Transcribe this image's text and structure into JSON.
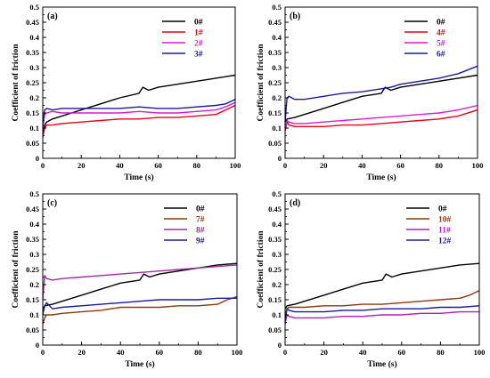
{
  "chart_data": [
    {
      "type": "line",
      "panel_label": "(a)",
      "xlabel": "Time (s)",
      "ylabel": "Coefficient of friction",
      "xlim": [
        0,
        100
      ],
      "ylim": [
        0,
        0.5
      ],
      "xticks": [
        0,
        20,
        40,
        60,
        80,
        100
      ],
      "yticks": [
        0,
        0.05,
        0.1,
        0.15,
        0.2,
        0.25,
        0.3,
        0.35,
        0.4,
        0.45,
        0.5
      ],
      "ytick_labels": [
        "0",
        "0.05",
        "0.1",
        "0.15",
        "0.2",
        "0.25",
        "0.3",
        "0.35",
        "0.4",
        "0.45",
        "0.5"
      ],
      "legend_position": "top-right",
      "series": [
        {
          "name": "0#",
          "color": "#000000",
          "x": [
            0,
            1,
            2,
            5,
            10,
            20,
            30,
            40,
            50,
            52,
            55,
            60,
            70,
            80,
            90,
            100
          ],
          "y": [
            0.08,
            0.11,
            0.12,
            0.13,
            0.14,
            0.16,
            0.18,
            0.2,
            0.215,
            0.235,
            0.225,
            0.235,
            0.245,
            0.255,
            0.265,
            0.275
          ]
        },
        {
          "name": "1#",
          "color": "#e8001c",
          "x": [
            0,
            1,
            2,
            5,
            10,
            20,
            30,
            40,
            50,
            60,
            70,
            80,
            90,
            95,
            100
          ],
          "y": [
            0.07,
            0.1,
            0.11,
            0.11,
            0.115,
            0.12,
            0.125,
            0.13,
            0.13,
            0.135,
            0.135,
            0.14,
            0.145,
            0.16,
            0.175
          ]
        },
        {
          "name": "2#",
          "color": "#d11fd1",
          "x": [
            0,
            1,
            2,
            5,
            10,
            20,
            30,
            40,
            50,
            60,
            70,
            80,
            90,
            95,
            100
          ],
          "y": [
            0.1,
            0.145,
            0.15,
            0.155,
            0.15,
            0.15,
            0.15,
            0.15,
            0.155,
            0.15,
            0.15,
            0.155,
            0.16,
            0.17,
            0.185
          ]
        },
        {
          "name": "3#",
          "color": "#1a1a9c",
          "x": [
            0,
            1,
            2,
            5,
            10,
            20,
            30,
            40,
            50,
            60,
            70,
            80,
            90,
            95,
            100
          ],
          "y": [
            0.12,
            0.16,
            0.165,
            0.16,
            0.165,
            0.165,
            0.165,
            0.165,
            0.17,
            0.165,
            0.165,
            0.17,
            0.175,
            0.18,
            0.195
          ]
        }
      ]
    },
    {
      "type": "line",
      "panel_label": "(b)",
      "xlabel": "Time (s)",
      "ylabel": "Coefficient of friction",
      "xlim": [
        0,
        100
      ],
      "ylim": [
        0,
        0.5
      ],
      "xticks": [
        0,
        20,
        40,
        60,
        80,
        100
      ],
      "yticks": [
        0,
        0.05,
        0.1,
        0.15,
        0.2,
        0.25,
        0.3,
        0.35,
        0.4,
        0.45,
        0.5
      ],
      "ytick_labels": [
        "0",
        "0.05",
        "0.1",
        "0.15",
        "0.2",
        "0.25",
        "0.3",
        "0.35",
        "0.4",
        "0.45",
        "0.5"
      ],
      "legend_position": "top-right",
      "series": [
        {
          "name": "0#",
          "color": "#000000",
          "x": [
            0,
            1,
            5,
            10,
            20,
            30,
            40,
            50,
            52,
            55,
            60,
            70,
            80,
            90,
            100
          ],
          "y": [
            0.12,
            0.13,
            0.135,
            0.145,
            0.165,
            0.185,
            0.205,
            0.215,
            0.235,
            0.225,
            0.235,
            0.245,
            0.255,
            0.265,
            0.275
          ]
        },
        {
          "name": "4#",
          "color": "#e8001c",
          "x": [
            0,
            1,
            2,
            5,
            10,
            20,
            30,
            40,
            50,
            60,
            70,
            80,
            90,
            100
          ],
          "y": [
            0.09,
            0.12,
            0.11,
            0.105,
            0.105,
            0.105,
            0.11,
            0.11,
            0.115,
            0.12,
            0.125,
            0.13,
            0.14,
            0.16
          ]
        },
        {
          "name": "5#",
          "color": "#d11fd1",
          "x": [
            0,
            1,
            2,
            5,
            10,
            20,
            30,
            40,
            50,
            60,
            70,
            80,
            90,
            100
          ],
          "y": [
            0.1,
            0.125,
            0.12,
            0.115,
            0.115,
            0.12,
            0.125,
            0.13,
            0.135,
            0.14,
            0.145,
            0.15,
            0.16,
            0.175
          ]
        },
        {
          "name": "6#",
          "color": "#1a1a9c",
          "x": [
            0,
            1,
            2,
            5,
            10,
            20,
            30,
            40,
            50,
            55,
            60,
            70,
            80,
            90,
            100
          ],
          "y": [
            0.12,
            0.2,
            0.205,
            0.195,
            0.195,
            0.205,
            0.215,
            0.22,
            0.23,
            0.235,
            0.245,
            0.255,
            0.265,
            0.28,
            0.305
          ]
        }
      ]
    },
    {
      "type": "line",
      "panel_label": "(c)",
      "xlabel": "Time (s)",
      "ylabel": "Coefficient of friction",
      "xlim": [
        0,
        100
      ],
      "ylim": [
        0,
        0.5
      ],
      "xticks": [
        0,
        20,
        40,
        60,
        80,
        100
      ],
      "yticks": [
        0,
        0.05,
        0.1,
        0.15,
        0.2,
        0.25,
        0.3,
        0.35,
        0.4,
        0.45,
        0.5
      ],
      "ytick_labels": [
        "0",
        "0.05",
        "0.1",
        "0.15",
        "0.2",
        "0.25",
        "0.3",
        "0.35",
        "0.4",
        "0.45",
        "0.5"
      ],
      "legend_position": "top-right",
      "series": [
        {
          "name": "0#",
          "color": "#000000",
          "x": [
            0,
            1,
            5,
            10,
            20,
            30,
            40,
            50,
            52,
            55,
            60,
            70,
            80,
            90,
            100
          ],
          "y": [
            0.12,
            0.13,
            0.135,
            0.145,
            0.165,
            0.185,
            0.205,
            0.215,
            0.235,
            0.225,
            0.235,
            0.245,
            0.255,
            0.265,
            0.27
          ]
        },
        {
          "name": "7#",
          "color": "#8b3a0f",
          "x": [
            0,
            1,
            2,
            5,
            10,
            20,
            30,
            40,
            50,
            60,
            70,
            80,
            90,
            95,
            100
          ],
          "y": [
            0.07,
            0.09,
            0.1,
            0.1,
            0.105,
            0.11,
            0.115,
            0.125,
            0.125,
            0.125,
            0.13,
            0.13,
            0.135,
            0.15,
            0.16
          ]
        },
        {
          "name": "8#",
          "color": "#9c2fa6",
          "x": [
            0,
            1,
            2,
            5,
            10,
            20,
            30,
            40,
            50,
            60,
            70,
            80,
            90,
            100
          ],
          "y": [
            0.15,
            0.23,
            0.22,
            0.215,
            0.22,
            0.225,
            0.23,
            0.235,
            0.24,
            0.245,
            0.25,
            0.255,
            0.26,
            0.265
          ]
        },
        {
          "name": "9#",
          "color": "#1a1a9c",
          "x": [
            0,
            1,
            2,
            5,
            10,
            20,
            30,
            40,
            50,
            60,
            70,
            80,
            90,
            100
          ],
          "y": [
            0.1,
            0.13,
            0.14,
            0.12,
            0.125,
            0.13,
            0.135,
            0.14,
            0.145,
            0.15,
            0.15,
            0.15,
            0.155,
            0.155
          ]
        }
      ]
    },
    {
      "type": "line",
      "panel_label": "(d)",
      "xlabel": "Time (s)",
      "ylabel": "Coefficient of friction",
      "xlim": [
        0,
        100
      ],
      "ylim": [
        0,
        0.5
      ],
      "xticks": [
        0,
        20,
        40,
        60,
        80,
        100
      ],
      "yticks": [
        0,
        0.05,
        0.1,
        0.15,
        0.2,
        0.25,
        0.3,
        0.35,
        0.4,
        0.45,
        0.5
      ],
      "ytick_labels": [
        "0",
        "0.05",
        "0.1",
        "0.15",
        "0.2",
        "0.25",
        "0.3",
        "0.35",
        "0.4",
        "0.45",
        "0.5"
      ],
      "legend_position": "top-right",
      "series": [
        {
          "name": "0#",
          "color": "#000000",
          "x": [
            0,
            1,
            5,
            10,
            20,
            30,
            40,
            50,
            52,
            55,
            60,
            70,
            80,
            90,
            100
          ],
          "y": [
            0.12,
            0.13,
            0.135,
            0.145,
            0.165,
            0.185,
            0.205,
            0.215,
            0.235,
            0.225,
            0.235,
            0.245,
            0.255,
            0.265,
            0.27
          ]
        },
        {
          "name": "10#",
          "color": "#8b3a0f",
          "x": [
            0,
            1,
            2,
            5,
            10,
            20,
            30,
            40,
            50,
            60,
            70,
            80,
            90,
            95,
            100
          ],
          "y": [
            0.1,
            0.12,
            0.125,
            0.125,
            0.125,
            0.13,
            0.13,
            0.135,
            0.135,
            0.14,
            0.145,
            0.15,
            0.155,
            0.165,
            0.18
          ]
        },
        {
          "name": "11#",
          "color": "#b41fb4",
          "x": [
            0,
            1,
            2,
            5,
            10,
            20,
            30,
            40,
            50,
            60,
            70,
            80,
            90,
            100
          ],
          "y": [
            0.07,
            0.1,
            0.095,
            0.09,
            0.09,
            0.09,
            0.095,
            0.095,
            0.1,
            0.1,
            0.105,
            0.105,
            0.11,
            0.11
          ]
        },
        {
          "name": "12#",
          "color": "#1a1a9c",
          "x": [
            0,
            1,
            2,
            5,
            10,
            20,
            30,
            40,
            50,
            60,
            70,
            80,
            90,
            100
          ],
          "y": [
            0.08,
            0.12,
            0.115,
            0.11,
            0.11,
            0.11,
            0.115,
            0.115,
            0.12,
            0.12,
            0.12,
            0.125,
            0.125,
            0.13
          ]
        }
      ]
    }
  ]
}
